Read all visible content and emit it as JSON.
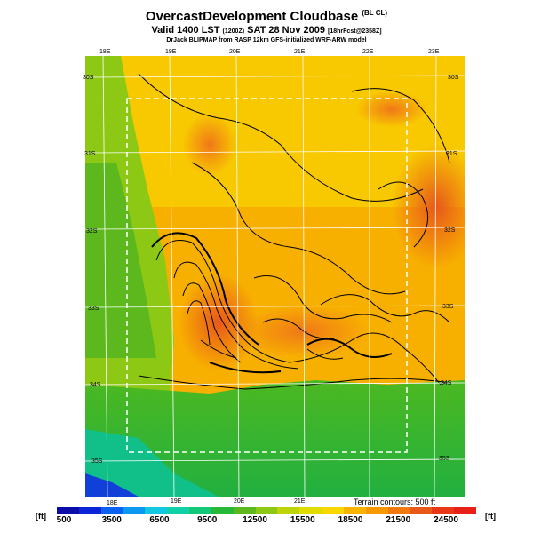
{
  "header": {
    "title": "OvercastDevelopment Cloudbase",
    "title_suffix": "(BL CL)",
    "valid_prefix": "Valid 1400 LST",
    "valid_local": "(1200Z)",
    "valid_date": "SAT 28 Nov 2009",
    "valid_suffix": "[18hrFcst@2358Z]",
    "credit": "DrJack BLIPMAP from RASP 12km GFS-initialized WRF-ARW model"
  },
  "map": {
    "top_lon_labels": [
      "18E",
      "19E",
      "20E",
      "21E",
      "22E",
      "23E"
    ],
    "bottom_lon_labels": [
      "18E",
      "19E",
      "20E",
      "21E"
    ],
    "lat_labels_left": [
      "30S",
      "31S",
      "32S",
      "33S",
      "34S",
      "35S"
    ],
    "lat_labels_right": [
      "30S",
      "31S",
      "32S",
      "33S",
      "34S",
      "35S"
    ],
    "terrain_note": "Terrain contours: 500 ft"
  },
  "legend": {
    "unit_left": "[ft]",
    "unit_right": "[ft]",
    "labels": [
      "500",
      "3500",
      "6500",
      "9500",
      "12500",
      "15500",
      "18500",
      "21500",
      "24500"
    ],
    "colors": [
      "#0c0ca8",
      "#0a24d8",
      "#0a60f0",
      "#0a98f0",
      "#12c8e0",
      "#10d0a8",
      "#12c878",
      "#28b838",
      "#5cb81c",
      "#8cc814",
      "#bcd408",
      "#e0dc00",
      "#f8d800",
      "#f8b400",
      "#f89800",
      "#f07a10",
      "#e85818",
      "#e83818",
      "#e82018"
    ]
  }
}
